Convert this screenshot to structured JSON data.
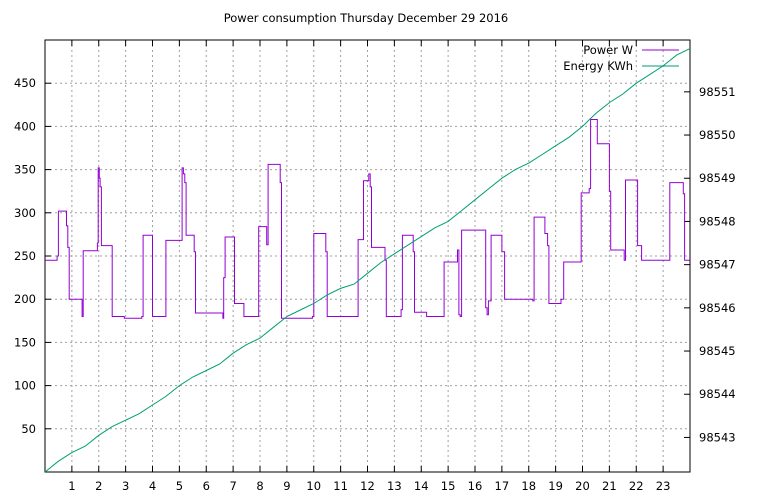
{
  "chart_data": {
    "type": "line",
    "title": "Power consumption Thursday December 29 2016",
    "xlabel": "",
    "ylabel": "",
    "grid": true,
    "legend_position": "top-right",
    "x_ticks": [
      1,
      2,
      3,
      4,
      5,
      6,
      7,
      8,
      9,
      10,
      11,
      12,
      13,
      14,
      15,
      16,
      17,
      18,
      19,
      20,
      21,
      22,
      23
    ],
    "xlim": [
      0,
      24
    ],
    "y_ticks": [
      50,
      100,
      150,
      200,
      250,
      300,
      350,
      400,
      450
    ],
    "ylim": [
      0,
      500
    ],
    "y2_ticks": [
      98543,
      98544,
      98545,
      98546,
      98547,
      98548,
      98549,
      98550,
      98551
    ],
    "y2lim": [
      98542.2,
      98552.2
    ],
    "series": [
      {
        "name": "Power W",
        "axis": "left",
        "color": "#9400d3",
        "step": true,
        "points": [
          [
            0,
            245
          ],
          [
            0.4,
            245
          ],
          [
            0.45,
            250
          ],
          [
            0.5,
            302
          ],
          [
            0.75,
            302
          ],
          [
            0.8,
            285
          ],
          [
            0.85,
            260
          ],
          [
            0.9,
            200
          ],
          [
            1.35,
            200
          ],
          [
            1.38,
            180
          ],
          [
            1.42,
            256
          ],
          [
            1.9,
            256
          ],
          [
            1.95,
            265
          ],
          [
            1.98,
            352
          ],
          [
            2.02,
            340
          ],
          [
            2.05,
            330
          ],
          [
            2.1,
            262
          ],
          [
            2.45,
            262
          ],
          [
            2.5,
            180
          ],
          [
            2.9,
            180
          ],
          [
            2.95,
            178
          ],
          [
            3.55,
            178
          ],
          [
            3.6,
            180
          ],
          [
            3.65,
            274
          ],
          [
            3.95,
            274
          ],
          [
            4.0,
            180
          ],
          [
            4.45,
            180
          ],
          [
            4.5,
            268
          ],
          [
            5.05,
            268
          ],
          [
            5.1,
            352
          ],
          [
            5.15,
            345
          ],
          [
            5.2,
            335
          ],
          [
            5.25,
            274
          ],
          [
            5.5,
            274
          ],
          [
            5.55,
            255
          ],
          [
            5.6,
            184
          ],
          [
            6.6,
            184
          ],
          [
            6.62,
            178
          ],
          [
            6.65,
            225
          ],
          [
            6.7,
            272
          ],
          [
            7.0,
            272
          ],
          [
            7.05,
            195
          ],
          [
            7.35,
            195
          ],
          [
            7.4,
            180
          ],
          [
            7.9,
            180
          ],
          [
            7.95,
            284
          ],
          [
            8.2,
            284
          ],
          [
            8.25,
            263
          ],
          [
            8.3,
            356
          ],
          [
            8.7,
            356
          ],
          [
            8.75,
            335
          ],
          [
            8.8,
            178
          ],
          [
            9.9,
            178
          ],
          [
            9.95,
            180
          ],
          [
            10.0,
            276
          ],
          [
            10.4,
            276
          ],
          [
            10.45,
            255
          ],
          [
            10.5,
            180
          ],
          [
            11.6,
            180
          ],
          [
            11.65,
            269
          ],
          [
            11.8,
            269
          ],
          [
            11.85,
            337
          ],
          [
            12.0,
            337
          ],
          [
            12.05,
            345
          ],
          [
            12.1,
            330
          ],
          [
            12.15,
            260
          ],
          [
            12.6,
            260
          ],
          [
            12.65,
            245
          ],
          [
            12.7,
            180
          ],
          [
            13.2,
            180
          ],
          [
            13.25,
            188
          ],
          [
            13.3,
            274
          ],
          [
            13.65,
            274
          ],
          [
            13.7,
            255
          ],
          [
            13.75,
            185
          ],
          [
            14.15,
            185
          ],
          [
            14.2,
            180
          ],
          [
            14.8,
            180
          ],
          [
            14.85,
            243
          ],
          [
            15.3,
            243
          ],
          [
            15.35,
            257
          ],
          [
            15.4,
            182
          ],
          [
            15.45,
            180
          ],
          [
            15.5,
            280
          ],
          [
            16.35,
            280
          ],
          [
            16.4,
            190
          ],
          [
            16.45,
            182
          ],
          [
            16.5,
            198
          ],
          [
            16.6,
            274
          ],
          [
            16.95,
            274
          ],
          [
            17.0,
            255
          ],
          [
            17.1,
            200
          ],
          [
            18.1,
            200
          ],
          [
            18.15,
            198
          ],
          [
            18.2,
            295
          ],
          [
            18.55,
            295
          ],
          [
            18.6,
            276
          ],
          [
            18.7,
            262
          ],
          [
            18.75,
            195
          ],
          [
            19.15,
            195
          ],
          [
            19.2,
            200
          ],
          [
            19.3,
            243
          ],
          [
            19.9,
            243
          ],
          [
            19.95,
            323
          ],
          [
            20.2,
            323
          ],
          [
            20.25,
            328
          ],
          [
            20.3,
            408
          ],
          [
            20.5,
            408
          ],
          [
            20.55,
            380
          ],
          [
            20.95,
            380
          ],
          [
            21.0,
            325
          ],
          [
            21.05,
            257
          ],
          [
            21.5,
            257
          ],
          [
            21.55,
            245
          ],
          [
            21.6,
            338
          ],
          [
            22.0,
            338
          ],
          [
            22.05,
            262
          ],
          [
            22.15,
            262
          ],
          [
            22.2,
            245
          ],
          [
            23.2,
            245
          ],
          [
            23.25,
            335
          ],
          [
            23.7,
            335
          ],
          [
            23.75,
            322
          ],
          [
            23.8,
            245
          ],
          [
            24.0,
            245
          ]
        ]
      },
      {
        "name": "Energy KWh",
        "axis": "right",
        "color": "#009e73",
        "step": false,
        "points": [
          [
            0,
            98542.2
          ],
          [
            0.5,
            98542.45
          ],
          [
            1,
            98542.65
          ],
          [
            1.5,
            98542.8
          ],
          [
            2,
            98543.05
          ],
          [
            2.5,
            98543.25
          ],
          [
            3,
            98543.4
          ],
          [
            3.5,
            98543.55
          ],
          [
            4,
            98543.75
          ],
          [
            4.5,
            98543.95
          ],
          [
            5,
            98544.2
          ],
          [
            5.5,
            98544.4
          ],
          [
            6,
            98544.55
          ],
          [
            6.5,
            98544.7
          ],
          [
            7,
            98544.95
          ],
          [
            7.5,
            98545.15
          ],
          [
            8,
            98545.3
          ],
          [
            8.5,
            98545.55
          ],
          [
            9,
            98545.8
          ],
          [
            9.5,
            98545.95
          ],
          [
            10,
            98546.1
          ],
          [
            10.5,
            98546.3
          ],
          [
            11,
            98546.45
          ],
          [
            11.5,
            98546.55
          ],
          [
            12,
            98546.8
          ],
          [
            12.5,
            98547.05
          ],
          [
            13,
            98547.25
          ],
          [
            13.5,
            98547.45
          ],
          [
            14,
            98547.65
          ],
          [
            14.5,
            98547.85
          ],
          [
            15,
            98548.0
          ],
          [
            15.5,
            98548.25
          ],
          [
            16,
            98548.5
          ],
          [
            16.5,
            98548.75
          ],
          [
            17,
            98549.0
          ],
          [
            17.5,
            98549.2
          ],
          [
            18,
            98549.35
          ],
          [
            18.5,
            98549.55
          ],
          [
            19,
            98549.75
          ],
          [
            19.5,
            98549.95
          ],
          [
            20,
            98550.2
          ],
          [
            20.5,
            98550.5
          ],
          [
            21,
            98550.75
          ],
          [
            21.5,
            98550.95
          ],
          [
            22,
            98551.2
          ],
          [
            22.5,
            98551.4
          ],
          [
            23,
            98551.6
          ],
          [
            23.5,
            98551.85
          ],
          [
            24,
            98552.0
          ]
        ]
      }
    ]
  }
}
